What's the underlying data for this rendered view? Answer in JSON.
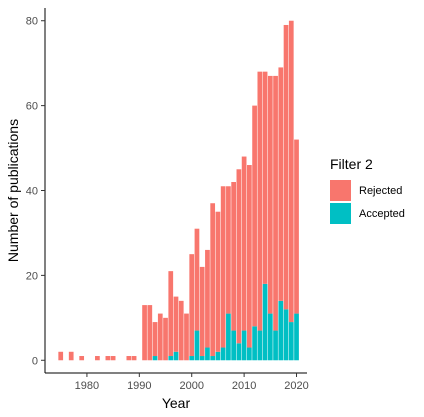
{
  "chart_data": {
    "type": "bar",
    "stacked": true,
    "xlabel": "Year",
    "ylabel": "Number of publications",
    "xlim": [
      1972,
      2022
    ],
    "ylim": [
      -3,
      83
    ],
    "x_ticks": [
      1980,
      1990,
      2000,
      2010,
      2020
    ],
    "y_ticks": [
      0,
      20,
      40,
      60,
      80
    ],
    "grid": false,
    "legend": {
      "title": "Filter 2",
      "position": "right",
      "entries": [
        "Rejected",
        "Accepted"
      ]
    },
    "colors": {
      "Rejected": "#F8766D",
      "Accepted": "#00BFC4"
    },
    "x": [
      1975,
      1977,
      1979,
      1982,
      1984,
      1985,
      1988,
      1989,
      1991,
      1992,
      1993,
      1994,
      1995,
      1996,
      1997,
      1998,
      1999,
      2000,
      2001,
      2002,
      2003,
      2004,
      2005,
      2006,
      2007,
      2008,
      2009,
      2010,
      2011,
      2012,
      2013,
      2014,
      2015,
      2016,
      2017,
      2018,
      2019,
      2020
    ],
    "series": [
      {
        "name": "Accepted",
        "values": [
          0,
          0,
          0,
          0,
          0,
          0,
          0,
          0,
          0,
          0,
          1,
          0,
          0,
          1,
          2,
          0,
          0,
          1,
          7,
          1,
          3,
          1,
          2,
          3,
          11,
          7,
          4,
          7,
          3,
          8,
          7,
          18,
          11,
          7,
          14,
          12,
          9,
          11
        ]
      },
      {
        "name": "Rejected",
        "values": [
          2,
          2,
          1,
          1,
          1,
          1,
          1,
          1,
          13,
          13,
          8,
          11,
          10,
          20,
          13,
          14,
          11,
          24,
          24,
          21,
          23,
          36,
          33,
          38,
          30,
          35,
          41,
          41,
          43,
          52,
          61,
          50,
          56,
          60,
          55,
          67,
          71,
          41
        ]
      }
    ]
  }
}
